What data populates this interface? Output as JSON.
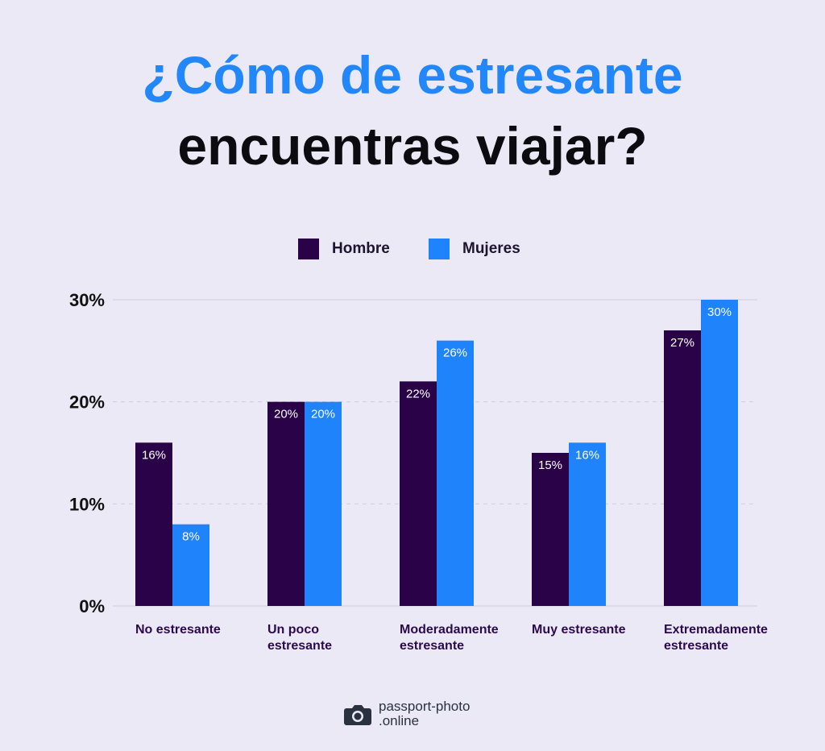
{
  "title": {
    "line1": "¿Cómo de estresante",
    "line2": "encuentras viajar?"
  },
  "colors": {
    "background": "#ece9f6",
    "hombre": "#2a0248",
    "mujeres": "#1f84fb",
    "title_accent": "#2187fb"
  },
  "legend": {
    "items": [
      {
        "label": "Hombre",
        "color": "#2a0248"
      },
      {
        "label": "Mujeres",
        "color": "#1f84fb"
      }
    ]
  },
  "chart_data": {
    "type": "bar",
    "categories": [
      [
        "No estresante"
      ],
      [
        "Un poco",
        "estresante"
      ],
      [
        "Moderadamente",
        "estresante"
      ],
      [
        "Muy estresante"
      ],
      [
        "Extremadamente",
        "estresante"
      ]
    ],
    "series": [
      {
        "name": "Hombre",
        "values": [
          16,
          20,
          22,
          15,
          27
        ],
        "labels": [
          "16%",
          "20%",
          "22%",
          "15%",
          "27%"
        ]
      },
      {
        "name": "Mujeres",
        "values": [
          8,
          20,
          26,
          16,
          30
        ],
        "labels": [
          "8%",
          "20%",
          "26%",
          "16%",
          "30%"
        ]
      }
    ],
    "yticks": [
      "0%",
      "10%",
      "20%",
      "30%"
    ],
    "ytick_values": [
      0,
      10,
      20,
      30
    ],
    "ylim": [
      0,
      30
    ],
    "grid": true,
    "legend_position": "top-center"
  },
  "footer": {
    "brand_line1": "passport-photo",
    "brand_line2": ".online",
    "icon": "camera-icon"
  }
}
